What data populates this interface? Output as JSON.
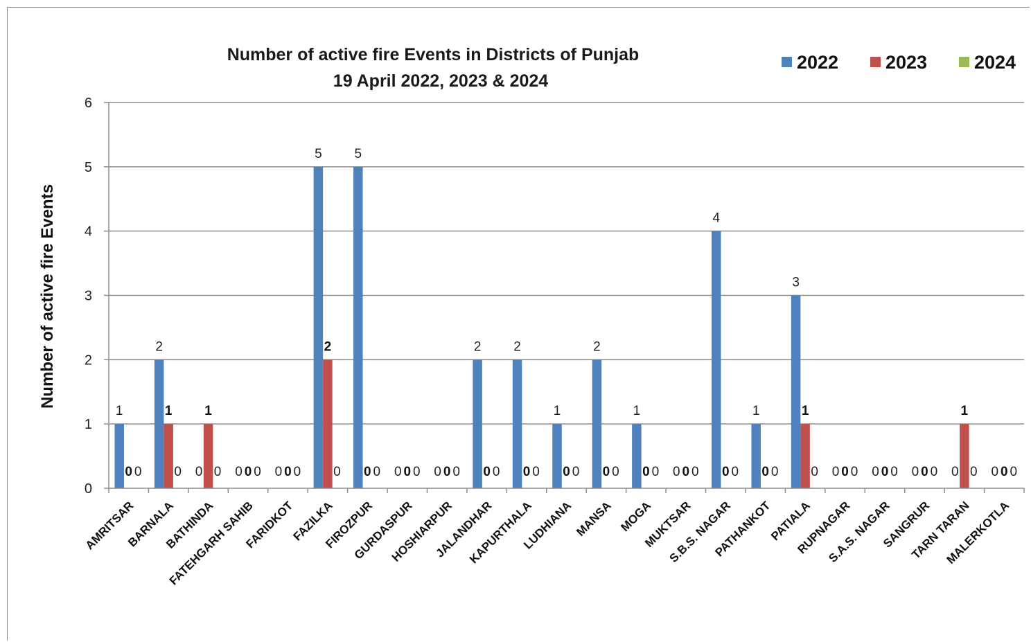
{
  "chart_data": {
    "type": "bar",
    "title": "Number of active fire Events in Districts of Punjab",
    "subtitle": "19 April 2022, 2023 & 2024",
    "xlabel": "",
    "ylabel": "Number of active fire Events",
    "ylim": [
      0,
      6
    ],
    "yticks": [
      "0",
      "1",
      "2",
      "3",
      "4",
      "5",
      "6"
    ],
    "grid": true,
    "legend_position": "top-right",
    "categories": [
      "AMRITSAR",
      "BARNALA",
      "BATHINDA",
      "FATEHGARH SAHIB",
      "FARIDKOT",
      "FAZILKA",
      "FIROZPUR",
      "GURDASPUR",
      "HOSHIARPUR",
      "JALANDHAR",
      "KAPURTHALA",
      "LUDHIANA",
      "MANSA",
      "MOGA",
      "MUKTSAR",
      "S.B.S. NAGAR",
      "PATHANKOT",
      "PATIALA",
      "RUPNAGAR",
      "S.A.S. NAGAR",
      "SANGRUR",
      "TARN TARAN",
      "MALERKOTLA"
    ],
    "series": [
      {
        "name": "2022",
        "color": "#4f81bd",
        "values": [
          1,
          2,
          0,
          0,
          0,
          5,
          5,
          0,
          0,
          2,
          2,
          1,
          2,
          1,
          0,
          4,
          1,
          3,
          0,
          0,
          0,
          0,
          0
        ]
      },
      {
        "name": "2023",
        "color": "#c0504d",
        "values": [
          0,
          1,
          1,
          0,
          0,
          2,
          0,
          0,
          0,
          0,
          0,
          0,
          0,
          0,
          0,
          0,
          0,
          1,
          0,
          0,
          0,
          1,
          0
        ]
      },
      {
        "name": "2024",
        "color": "#9bbb59",
        "values": [
          0,
          0,
          0,
          0,
          0,
          0,
          0,
          0,
          0,
          0,
          0,
          0,
          0,
          0,
          0,
          0,
          0,
          0,
          0,
          0,
          0,
          0,
          0
        ]
      }
    ]
  }
}
